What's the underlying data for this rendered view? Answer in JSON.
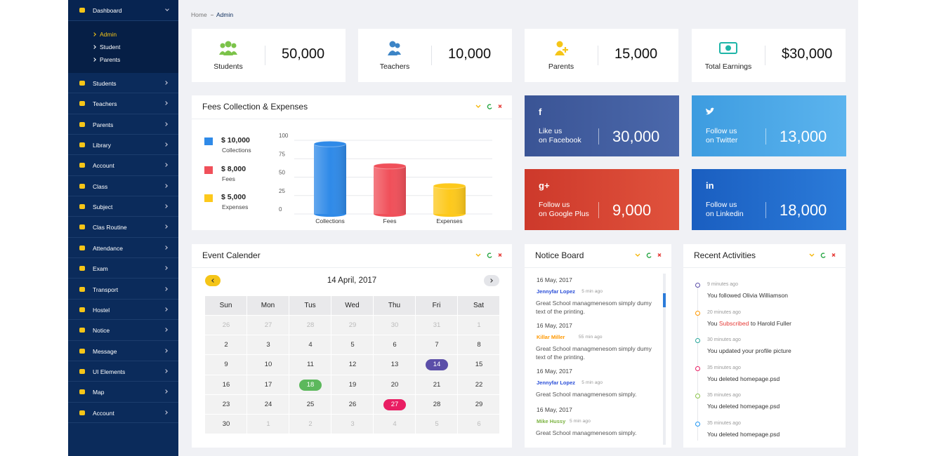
{
  "sidebar": {
    "dashboard": "Dashboard",
    "submenu": [
      "Admin",
      "Student",
      "Parents"
    ],
    "items": [
      "Students",
      "Teachers",
      "Parents",
      "Library",
      "Account",
      "Class",
      "Subject",
      "Clas Routine",
      "Attendance",
      "Exam",
      "Transport",
      "Hostel",
      "Notice",
      "Message",
      "UI Elements",
      "Map",
      "Account"
    ]
  },
  "breadcrumb": {
    "home": "Home",
    "current": "Admin"
  },
  "stats": [
    {
      "label": "Students",
      "value": "50,000"
    },
    {
      "label": "Teachers",
      "value": "10,000"
    },
    {
      "label": "Parents",
      "value": "15,000"
    },
    {
      "label": "Total Earnings",
      "value": "$30,000"
    }
  ],
  "fees_chart": {
    "type": "bar",
    "title": "Fees Collection & Expenses",
    "categories": [
      "Collections",
      "Fees",
      "Expenses"
    ],
    "legend_amounts": [
      "$ 10,000",
      "$ 8,000",
      "$ 5,000"
    ],
    "values": [
      95,
      65,
      38
    ],
    "colors": [
      "#2f8ae8",
      "#f0505a",
      "#fdc91c"
    ],
    "ylim": [
      0,
      100
    ],
    "yticks": [
      0,
      25,
      50,
      75,
      100
    ],
    "grid": true
  },
  "social": [
    {
      "icon": "f",
      "line1": "Like us",
      "line2": "on Facebook",
      "value": "30,000"
    },
    {
      "line1": "Follow us",
      "line2": "on Twitter",
      "value": "13,000"
    },
    {
      "icon": "g+",
      "line1": "Follow us",
      "line2": "on Google Plus",
      "value": "9,000"
    },
    {
      "icon": "in",
      "line1": "Follow us",
      "line2": "on Linkedin",
      "value": "18,000"
    }
  ],
  "calendar": {
    "title": "Event Calender",
    "month": "14 April, 2017",
    "weekdays": [
      "Sun",
      "Mon",
      "Tus",
      "Wed",
      "Thu",
      "Fri",
      "Sat"
    ],
    "weeks": [
      [
        26,
        27,
        28,
        29,
        30,
        31,
        1
      ],
      [
        2,
        3,
        4,
        5,
        6,
        7,
        8
      ],
      [
        9,
        10,
        11,
        12,
        13,
        14,
        15
      ],
      [
        16,
        17,
        18,
        19,
        20,
        21,
        22
      ],
      [
        23,
        24,
        25,
        26,
        27,
        28,
        29
      ],
      [
        30,
        1,
        2,
        3,
        4,
        5,
        6
      ]
    ],
    "events": [
      {
        "day": 14,
        "color": "#5b4ea8"
      },
      {
        "day": 18,
        "color": "#5cb85c"
      },
      {
        "day": 27,
        "color": "#e91e63"
      }
    ]
  },
  "notice_board": {
    "title": "Notice Board",
    "notices": [
      {
        "date": "16 May, 2017",
        "author": "Jennyfar Lopez",
        "time": "5 min ago",
        "text": "Great School managmenesom simply dumy text of the printing.",
        "color": "#2b4fd8"
      },
      {
        "date": "16 May, 2017",
        "author": "Killar Miller",
        "time": "55 min ago",
        "text": "Great School managmenesom simply dumy text of the printing.",
        "color": "#ff9800"
      },
      {
        "date": "16 May, 2017",
        "author": "Jennyfar Lopez",
        "time": "5 min ago",
        "text": "Great School managmenesom simply.",
        "color": "#2b4fd8"
      },
      {
        "date": "16 May, 2017",
        "author": "Mike Hussy",
        "time": "5 min ago",
        "text": "Great School managmenesom simply.",
        "color": "#7cb342"
      }
    ]
  },
  "recent_activities": {
    "title": "Recent Activities",
    "items": [
      {
        "time": "9 minutes ago",
        "text": "You followed Olivia Williamson",
        "color": "#5b4ea8"
      },
      {
        "time": "20 minutes ago",
        "text": "You",
        "highlight": "Subscribed",
        "text_after": "to Harold Fuller",
        "color": "#ff9800"
      },
      {
        "time": "30 minutes ago",
        "text": "You updated your profile picture",
        "color": "#26a69a"
      },
      {
        "time": "35 minutes ago",
        "text": "You deleted homepage.psd",
        "color": "#e91e63"
      },
      {
        "time": "35 minutes ago",
        "text": "You deleted homepage.psd",
        "color": "#8bc34a"
      },
      {
        "time": "35 minutes ago",
        "text": "You deleted homepage.psd",
        "color": "#2196f3"
      }
    ]
  }
}
